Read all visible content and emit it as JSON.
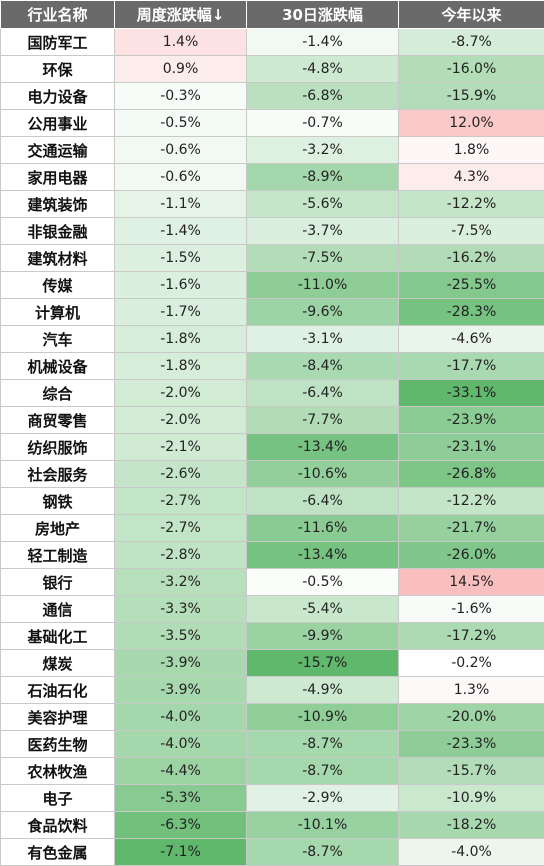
{
  "chart_data": {
    "type": "table",
    "columns": [
      "行业名称",
      "周度涨跌幅↓",
      "30日涨跌幅",
      "今年以来"
    ],
    "rows": [
      {
        "name": "国防军工",
        "week": "1.4%",
        "d30": "-1.4%",
        "ytd": "-8.7%",
        "wv": 1.4,
        "dv": -1.4,
        "yv": -8.7
      },
      {
        "name": "环保",
        "week": "0.9%",
        "d30": "-4.8%",
        "ytd": "-16.0%",
        "wv": 0.9,
        "dv": -4.8,
        "yv": -16.0
      },
      {
        "name": "电力设备",
        "week": "-0.3%",
        "d30": "-6.8%",
        "ytd": "-15.9%",
        "wv": -0.3,
        "dv": -6.8,
        "yv": -15.9
      },
      {
        "name": "公用事业",
        "week": "-0.5%",
        "d30": "-0.7%",
        "ytd": "12.0%",
        "wv": -0.5,
        "dv": -0.7,
        "yv": 12.0
      },
      {
        "name": "交通运输",
        "week": "-0.6%",
        "d30": "-3.2%",
        "ytd": "1.8%",
        "wv": -0.6,
        "dv": -3.2,
        "yv": 1.8
      },
      {
        "name": "家用电器",
        "week": "-0.6%",
        "d30": "-8.9%",
        "ytd": "4.3%",
        "wv": -0.6,
        "dv": -8.9,
        "yv": 4.3
      },
      {
        "name": "建筑装饰",
        "week": "-1.1%",
        "d30": "-5.6%",
        "ytd": "-12.2%",
        "wv": -1.1,
        "dv": -5.6,
        "yv": -12.2
      },
      {
        "name": "非银金融",
        "week": "-1.4%",
        "d30": "-3.7%",
        "ytd": "-7.5%",
        "wv": -1.4,
        "dv": -3.7,
        "yv": -7.5
      },
      {
        "name": "建筑材料",
        "week": "-1.5%",
        "d30": "-7.5%",
        "ytd": "-16.2%",
        "wv": -1.5,
        "dv": -7.5,
        "yv": -16.2
      },
      {
        "name": "传媒",
        "week": "-1.6%",
        "d30": "-11.0%",
        "ytd": "-25.5%",
        "wv": -1.6,
        "dv": -11.0,
        "yv": -25.5
      },
      {
        "name": "计算机",
        "week": "-1.7%",
        "d30": "-9.6%",
        "ytd": "-28.3%",
        "wv": -1.7,
        "dv": -9.6,
        "yv": -28.3
      },
      {
        "name": "汽车",
        "week": "-1.8%",
        "d30": "-3.1%",
        "ytd": "-4.6%",
        "wv": -1.8,
        "dv": -3.1,
        "yv": -4.6
      },
      {
        "name": "机械设备",
        "week": "-1.8%",
        "d30": "-8.4%",
        "ytd": "-17.7%",
        "wv": -1.8,
        "dv": -8.4,
        "yv": -17.7
      },
      {
        "name": "综合",
        "week": "-2.0%",
        "d30": "-6.4%",
        "ytd": "-33.1%",
        "wv": -2.0,
        "dv": -6.4,
        "yv": -33.1
      },
      {
        "name": "商贸零售",
        "week": "-2.0%",
        "d30": "-7.7%",
        "ytd": "-23.9%",
        "wv": -2.0,
        "dv": -7.7,
        "yv": -23.9
      },
      {
        "name": "纺织服饰",
        "week": "-2.1%",
        "d30": "-13.4%",
        "ytd": "-23.1%",
        "wv": -2.1,
        "dv": -13.4,
        "yv": -23.1
      },
      {
        "name": "社会服务",
        "week": "-2.6%",
        "d30": "-10.6%",
        "ytd": "-26.8%",
        "wv": -2.6,
        "dv": -10.6,
        "yv": -26.8
      },
      {
        "name": "钢铁",
        "week": "-2.7%",
        "d30": "-6.4%",
        "ytd": "-12.2%",
        "wv": -2.7,
        "dv": -6.4,
        "yv": -12.2
      },
      {
        "name": "房地产",
        "week": "-2.7%",
        "d30": "-11.6%",
        "ytd": "-21.7%",
        "wv": -2.7,
        "dv": -11.6,
        "yv": -21.7
      },
      {
        "name": "轻工制造",
        "week": "-2.8%",
        "d30": "-13.4%",
        "ytd": "-26.0%",
        "wv": -2.8,
        "dv": -13.4,
        "yv": -26.0
      },
      {
        "name": "银行",
        "week": "-3.2%",
        "d30": "-0.5%",
        "ytd": "14.5%",
        "wv": -3.2,
        "dv": -0.5,
        "yv": 14.5
      },
      {
        "name": "通信",
        "week": "-3.3%",
        "d30": "-5.4%",
        "ytd": "-1.6%",
        "wv": -3.3,
        "dv": -5.4,
        "yv": -1.6
      },
      {
        "name": "基础化工",
        "week": "-3.5%",
        "d30": "-9.9%",
        "ytd": "-17.2%",
        "wv": -3.5,
        "dv": -9.9,
        "yv": -17.2
      },
      {
        "name": "煤炭",
        "week": "-3.9%",
        "d30": "-15.7%",
        "ytd": "-0.2%",
        "wv": -3.9,
        "dv": -15.7,
        "yv": -0.2
      },
      {
        "name": "石油石化",
        "week": "-3.9%",
        "d30": "-4.9%",
        "ytd": "1.3%",
        "wv": -3.9,
        "dv": -4.9,
        "yv": 1.3
      },
      {
        "name": "美容护理",
        "week": "-4.0%",
        "d30": "-10.9%",
        "ytd": "-20.0%",
        "wv": -4.0,
        "dv": -10.9,
        "yv": -20.0
      },
      {
        "name": "医药生物",
        "week": "-4.0%",
        "d30": "-8.7%",
        "ytd": "-23.3%",
        "wv": -4.0,
        "dv": -8.7,
        "yv": -23.3
      },
      {
        "name": "农林牧渔",
        "week": "-4.4%",
        "d30": "-8.7%",
        "ytd": "-15.7%",
        "wv": -4.4,
        "dv": -8.7,
        "yv": -15.7
      },
      {
        "name": "电子",
        "week": "-5.3%",
        "d30": "-2.9%",
        "ytd": "-10.9%",
        "wv": -5.3,
        "dv": -2.9,
        "yv": -10.9
      },
      {
        "name": "食品饮料",
        "week": "-6.3%",
        "d30": "-10.1%",
        "ytd": "-18.2%",
        "wv": -6.3,
        "dv": -10.1,
        "yv": -18.2
      },
      {
        "name": "有色金属",
        "week": "-7.1%",
        "d30": "-8.7%",
        "ytd": "-4.0%",
        "wv": -7.1,
        "dv": -8.7,
        "yv": -4.0
      }
    ],
    "sort_column": "周度涨跌幅",
    "sort_order": "descending",
    "color_scale": {
      "positive": "#f26b6b",
      "negative": "#5fb86b",
      "neutral": "#ffffff"
    }
  }
}
